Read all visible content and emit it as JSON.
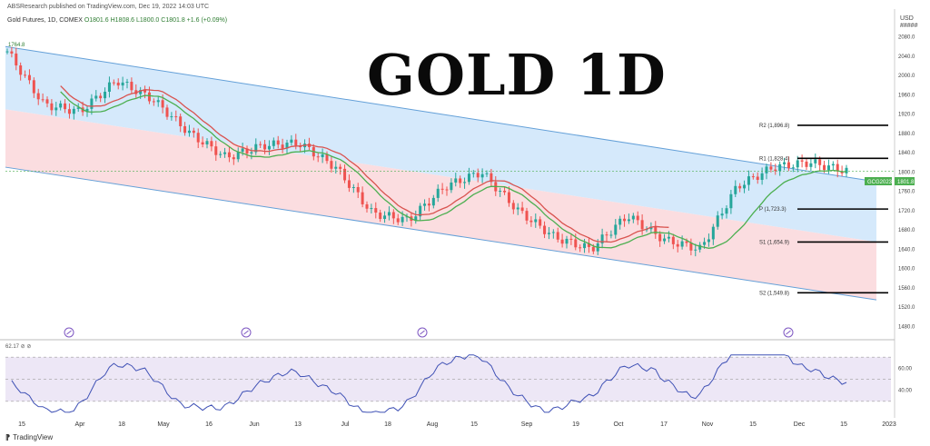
{
  "header": {
    "publisher": "ABSResearch published on TradingView.com, Dec 19, 2022 14:03 UTC",
    "symbol_line": "Gold Futures, 1D, COMEX",
    "ohlc": "O1801.6  H1808.6  L1800.0  C1801.8  +1.6 (+0.09%)"
  },
  "title": "GOLD 1D",
  "axis": {
    "currency": "USD",
    "unit": "#####",
    "price_ticks": [
      "2080.0",
      "2040.0",
      "2000.0",
      "1960.0",
      "1920.0",
      "1880.0",
      "1840.0",
      "1800.0",
      "1760.0",
      "1720.0",
      "1680.0",
      "1640.0",
      "1600.0",
      "1560.0",
      "1520.0",
      "1480.0"
    ],
    "date_ticks": [
      "15",
      "Apr",
      "18",
      "May",
      "16",
      "Jun",
      "13",
      "Jul",
      "18",
      "Aug",
      "15",
      "Sep",
      "19",
      "Oct",
      "17",
      "Nov",
      "15",
      "Dec",
      "15",
      "2023"
    ],
    "osc_ticks": [
      "60.00",
      "40.00"
    ]
  },
  "annotations": {
    "left_label": "1764.8",
    "price_tag": "1801.8",
    "price_tag_symbol": "GCG2023",
    "osc_label": "62.17  ⊘  ⊘"
  },
  "footer": {
    "brand": "TradingView"
  },
  "colors": {
    "up_channel": "#d5e9fb",
    "down_channel": "#fbdde0",
    "ma_red": "#d9534f",
    "ma_green": "#4caf50",
    "candle_up": "#26a69a",
    "candle_down": "#ef5350",
    "oscillator": "#3f51b5",
    "osc_band": "#ede7f6"
  },
  "chart_data": {
    "type": "line",
    "title": "GOLD 1D",
    "xlabel": "",
    "ylabel": "",
    "ylim": [
      1480,
      2090
    ],
    "series": [
      {
        "name": "Gold Futures",
        "x": [
          "Mar 8",
          "Mar 15",
          "Mar 29",
          "Apr 18",
          "Apr 25",
          "May 9",
          "May 16",
          "Jun 1",
          "Jun 13",
          "Jul 1",
          "Jul 18",
          "Jul 21",
          "Aug 1",
          "Aug 15",
          "Sep 1",
          "Sep 19",
          "Sep 27",
          "Oct 3",
          "Oct 17",
          "Nov 3",
          "Nov 15",
          "Dec 1",
          "Dec 15",
          "Dec 19"
        ],
        "values": [
          2050,
          1940,
          1925,
          1990,
          1950,
          1880,
          1830,
          1855,
          1860,
          1810,
          1715,
          1700,
          1770,
          1800,
          1720,
          1665,
          1640,
          1710,
          1660,
          1640,
          1770,
          1810,
          1820,
          1801.8
        ]
      }
    ],
    "levels": [
      {
        "label": "R2 (1,896.8)",
        "value": 1896.8
      },
      {
        "label": "R1 (1,828.4)",
        "value": 1828.4
      },
      {
        "label": "P (1,723.3)",
        "value": 1723.3
      },
      {
        "label": "S1 (1,654.9)",
        "value": 1654.9
      },
      {
        "label": "S2 (1,549.8)",
        "value": 1549.8
      }
    ],
    "grid": false,
    "legend": "top-left"
  }
}
